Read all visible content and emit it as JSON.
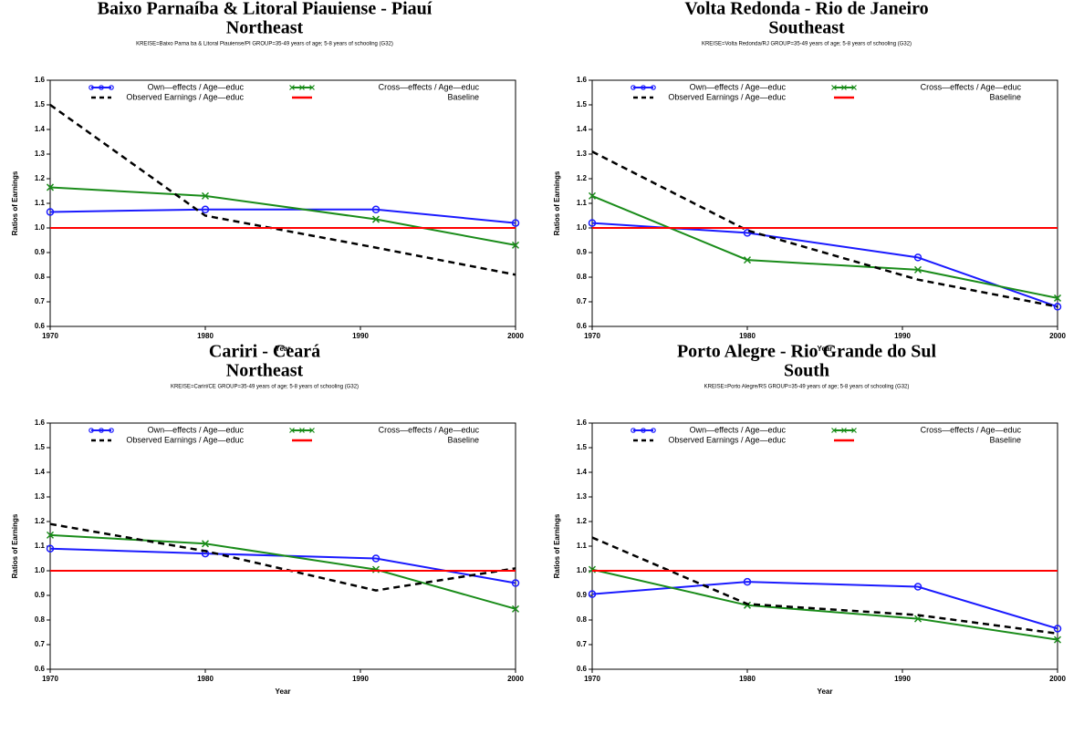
{
  "chart_data": [
    {
      "type": "line",
      "title": "Baixo Parnaíba & Litoral Piauiense - Piauí",
      "subtitle": "Northeast",
      "note": "KREISE=Baixo Parna ba & Litoral Piauiense/PI GROUP=35-49 years of age; 5-8 years of schooling (G32)",
      "x_label": "Year",
      "y_label": "Ratios of Earnings",
      "x": [
        1970,
        1980,
        1991,
        2000
      ],
      "xlim": [
        1970,
        2000
      ],
      "xticks": [
        1970,
        1980,
        1990,
        2000
      ],
      "ylim": [
        0.6,
        1.6
      ],
      "yticks": [
        0.6,
        0.7,
        0.8,
        0.9,
        {
          "value": 1,
          "label": "1.0"
        },
        1.1,
        1.2,
        1.3,
        1.4,
        1.5,
        1.6
      ],
      "series": [
        {
          "name": "Own—effects / Age—educ",
          "color": "#1a1aff",
          "marker": "circle",
          "dashed": false,
          "values": [
            1.065,
            1.075,
            1.075,
            1.02
          ]
        },
        {
          "name": "Cross—effects / Age—educ",
          "color": "#1a8c1a",
          "marker": "x",
          "dashed": false,
          "values": [
            1.165,
            1.13,
            1.035,
            0.93
          ]
        },
        {
          "name": "Observed Earnings / Age—educ",
          "color": "#000000",
          "marker": "none",
          "dashed": true,
          "values": [
            1.5,
            1.05,
            0.92,
            0.81
          ]
        },
        {
          "name": "Baseline",
          "color": "#ff0000",
          "marker": "none",
          "dashed": false,
          "values": [
            1,
            1,
            1,
            1
          ]
        }
      ]
    },
    {
      "type": "line",
      "title": "Volta Redonda - Rio de Janeiro",
      "subtitle": "Southeast",
      "note": "KREISE=Volta Redonda/RJ GROUP=35-49 years of age; 5-8 years of schooling (G32)",
      "x_label": "Year",
      "y_label": "Ratios of Earnings",
      "x": [
        1970,
        1980,
        1991,
        2000
      ],
      "xlim": [
        1970,
        2000
      ],
      "xticks": [
        1970,
        1980,
        1990,
        2000
      ],
      "ylim": [
        0.6,
        1.6
      ],
      "yticks": [
        0.6,
        0.7,
        0.8,
        0.9,
        {
          "value": 1,
          "label": "1.0"
        },
        1.1,
        1.2,
        1.3,
        1.4,
        1.5,
        1.6
      ],
      "series": [
        {
          "name": "Own—effects / Age—educ",
          "color": "#1a1aff",
          "marker": "circle",
          "dashed": false,
          "values": [
            1.02,
            0.98,
            0.88,
            0.68
          ]
        },
        {
          "name": "Cross—effects / Age—educ",
          "color": "#1a8c1a",
          "marker": "x",
          "dashed": false,
          "values": [
            1.13,
            0.87,
            0.83,
            0.715
          ]
        },
        {
          "name": "Observed Earnings / Age—educ",
          "color": "#000000",
          "marker": "none",
          "dashed": true,
          "values": [
            1.31,
            0.99,
            0.79,
            0.68
          ]
        },
        {
          "name": "Baseline",
          "color": "#ff0000",
          "marker": "none",
          "dashed": false,
          "values": [
            1,
            1,
            1,
            1
          ]
        }
      ]
    },
    {
      "type": "line",
      "title": "Cariri - Ceará",
      "subtitle": "Northeast",
      "note": "KREISE=Cariri/CE GROUP=35-49 years of age; 5-8 years of schooling (G32)",
      "x_label": "Year",
      "y_label": "Ratios of Earnings",
      "x": [
        1970,
        1980,
        1991,
        2000
      ],
      "xlim": [
        1970,
        2000
      ],
      "xticks": [
        1970,
        1980,
        1990,
        2000
      ],
      "ylim": [
        0.6,
        1.6
      ],
      "yticks": [
        0.6,
        0.7,
        0.8,
        0.9,
        {
          "value": 1,
          "label": "1.0"
        },
        1.1,
        1.2,
        1.3,
        1.4,
        1.5,
        1.6
      ],
      "series": [
        {
          "name": "Own—effects / Age—educ",
          "color": "#1a1aff",
          "marker": "circle",
          "dashed": false,
          "values": [
            1.09,
            1.07,
            1.05,
            0.95
          ]
        },
        {
          "name": "Cross—effects / Age—educ",
          "color": "#1a8c1a",
          "marker": "x",
          "dashed": false,
          "values": [
            1.145,
            1.11,
            1.005,
            0.845
          ]
        },
        {
          "name": "Observed Earnings / Age—educ",
          "color": "#000000",
          "marker": "none",
          "dashed": true,
          "values": [
            1.19,
            1.08,
            0.92,
            1.01
          ]
        },
        {
          "name": "Baseline",
          "color": "#ff0000",
          "marker": "none",
          "dashed": false,
          "values": [
            1,
            1,
            1,
            1
          ]
        }
      ]
    },
    {
      "type": "line",
      "title": "Porto Alegre - Rio Grande do Sul",
      "subtitle": "South",
      "note": "KREISE=Porto Alegre/RS GROUP=35-49 years of age; 5-8 years of schooling (G32)",
      "x_label": "Year",
      "y_label": "Ratios of Earnings",
      "x": [
        1970,
        1980,
        1991,
        2000
      ],
      "xlim": [
        1970,
        2000
      ],
      "xticks": [
        1970,
        1980,
        1990,
        2000
      ],
      "ylim": [
        0.6,
        1.6
      ],
      "yticks": [
        0.6,
        0.7,
        0.8,
        0.9,
        {
          "value": 1,
          "label": "1.0"
        },
        1.1,
        1.2,
        1.3,
        1.4,
        1.5,
        1.6
      ],
      "series": [
        {
          "name": "Own—effects / Age—educ",
          "color": "#1a1aff",
          "marker": "circle",
          "dashed": false,
          "values": [
            0.905,
            0.955,
            0.935,
            0.765
          ]
        },
        {
          "name": "Cross—effects / Age—educ",
          "color": "#1a8c1a",
          "marker": "x",
          "dashed": false,
          "values": [
            1.005,
            0.86,
            0.805,
            0.72
          ]
        },
        {
          "name": "Observed Earnings / Age—educ",
          "color": "#000000",
          "marker": "none",
          "dashed": true,
          "values": [
            1.135,
            0.865,
            0.82,
            0.745
          ]
        },
        {
          "name": "Baseline",
          "color": "#ff0000",
          "marker": "none",
          "dashed": false,
          "values": [
            1,
            1,
            1,
            1
          ]
        }
      ]
    }
  ]
}
